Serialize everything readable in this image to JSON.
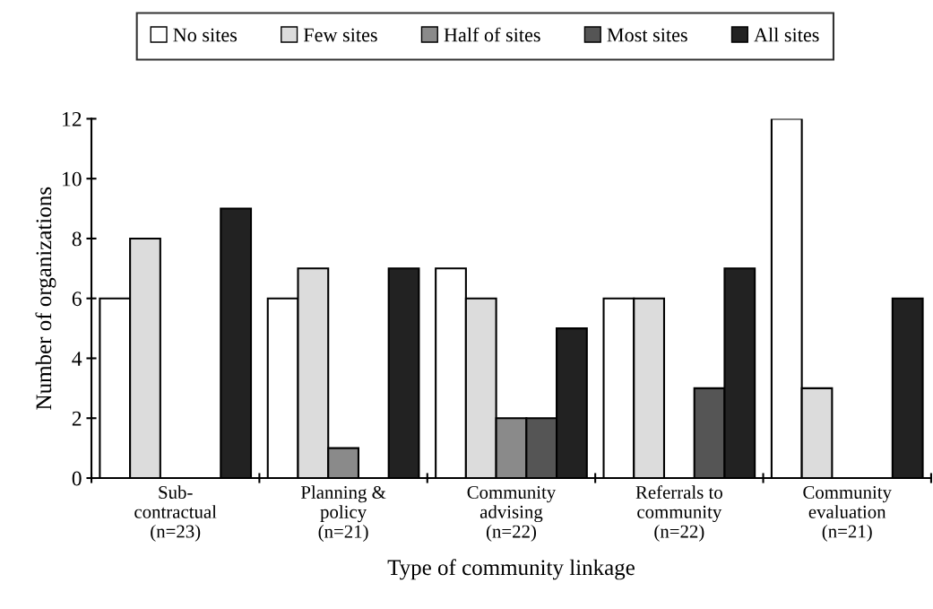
{
  "chart_data": {
    "type": "bar",
    "xlabel": "Type of community linkage",
    "ylabel": "Number of organizations",
    "categories": [
      "Sub-\ncontractual\n(n=23)",
      "Planning &\npolicy\n(n=21)",
      "Community\nadvising\n(n=22)",
      "Referrals to\ncommunity\n(n=22)",
      "Community\nevaluation\n(n=21)"
    ],
    "series": [
      {
        "name": "No sites",
        "color": "#ffffff",
        "values": [
          6,
          6,
          7,
          6,
          12
        ]
      },
      {
        "name": "Few sites",
        "color": "#dcdcdc",
        "values": [
          8,
          7,
          6,
          6,
          3
        ]
      },
      {
        "name": "Half of sites",
        "color": "#8a8a8a",
        "values": [
          0,
          1,
          2,
          0,
          0
        ]
      },
      {
        "name": "Most sites",
        "color": "#555555",
        "values": [
          0,
          0,
          2,
          3,
          0
        ]
      },
      {
        "name": "All sites",
        "color": "#222222",
        "values": [
          9,
          7,
          5,
          7,
          6
        ]
      }
    ],
    "ylim": [
      0,
      12
    ],
    "yticks": [
      0,
      2,
      4,
      6,
      8,
      10,
      12
    ],
    "grid": false,
    "legend": "top"
  }
}
